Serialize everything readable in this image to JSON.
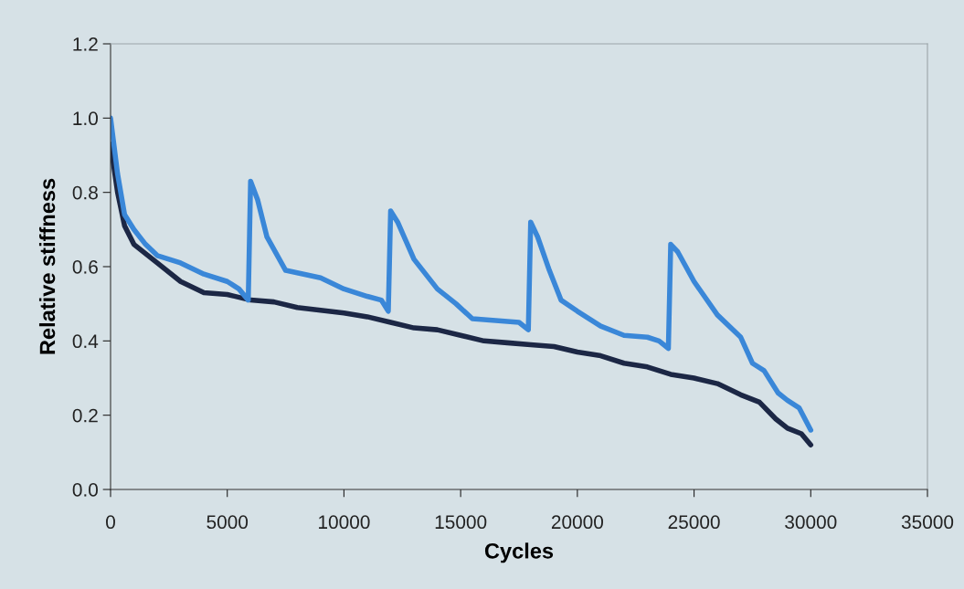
{
  "chart_data": {
    "type": "line",
    "xlabel": "Cycles",
    "ylabel": "Relative stiffness",
    "xlim": [
      0,
      35000
    ],
    "xticks": [
      0,
      5000,
      10000,
      15000,
      20000,
      25000,
      30000,
      35000
    ],
    "ylim": [
      0,
      1.2
    ],
    "yticks": [
      {
        "value": 0,
        "label": "0.0"
      },
      {
        "value": 0.2,
        "label": "0.2"
      },
      {
        "value": 0.4,
        "label": "0.4"
      },
      {
        "value": 0.6,
        "label": "0.6"
      },
      {
        "value": 0.8,
        "label": "0.8"
      },
      {
        "value": 1.0,
        "label": "1.0"
      },
      {
        "value": 1.2,
        "label": "1.2"
      }
    ],
    "grid": false,
    "marker": "none",
    "line_style": "solid",
    "series": [
      {
        "color": "#1c2745",
        "x": [
          0,
          300,
          600,
          1000,
          2000,
          3000,
          4000,
          5000,
          6000,
          7000,
          8000,
          10000,
          11000,
          12000,
          13000,
          14000,
          15000,
          16000,
          17000,
          18000,
          19000,
          20000,
          21000,
          22000,
          23000,
          24000,
          25000,
          26000,
          27000,
          27800,
          28500,
          29000,
          29600,
          30000
        ],
        "values": [
          0.93,
          0.8,
          0.71,
          0.66,
          0.61,
          0.56,
          0.53,
          0.525,
          0.51,
          0.505,
          0.49,
          0.475,
          0.465,
          0.45,
          0.435,
          0.43,
          0.415,
          0.4,
          0.395,
          0.39,
          0.385,
          0.37,
          0.36,
          0.34,
          0.33,
          0.31,
          0.3,
          0.285,
          0.255,
          0.235,
          0.19,
          0.165,
          0.15,
          0.12
        ]
      },
      {
        "color": "#3a87d8",
        "x": [
          0,
          300,
          600,
          1000,
          1500,
          2000,
          3000,
          4000,
          5000,
          5500,
          5900,
          6000,
          6300,
          6700,
          7500,
          9000,
          10000,
          11000,
          11600,
          11900,
          12000,
          12300,
          13000,
          14000,
          14800,
          15500,
          16500,
          17500,
          17900,
          18000,
          18300,
          18800,
          19300,
          20000,
          21000,
          22000,
          23000,
          23500,
          23900,
          24000,
          24300,
          25000,
          26000,
          27000,
          27500,
          28000,
          28600,
          29000,
          29500,
          30000
        ],
        "values": [
          1.0,
          0.85,
          0.74,
          0.7,
          0.66,
          0.63,
          0.61,
          0.58,
          0.56,
          0.54,
          0.51,
          0.83,
          0.78,
          0.68,
          0.59,
          0.57,
          0.54,
          0.52,
          0.51,
          0.48,
          0.75,
          0.72,
          0.62,
          0.54,
          0.5,
          0.46,
          0.455,
          0.45,
          0.43,
          0.72,
          0.68,
          0.59,
          0.51,
          0.48,
          0.44,
          0.415,
          0.41,
          0.4,
          0.38,
          0.66,
          0.64,
          0.56,
          0.47,
          0.41,
          0.34,
          0.32,
          0.26,
          0.24,
          0.22,
          0.16
        ]
      }
    ]
  }
}
